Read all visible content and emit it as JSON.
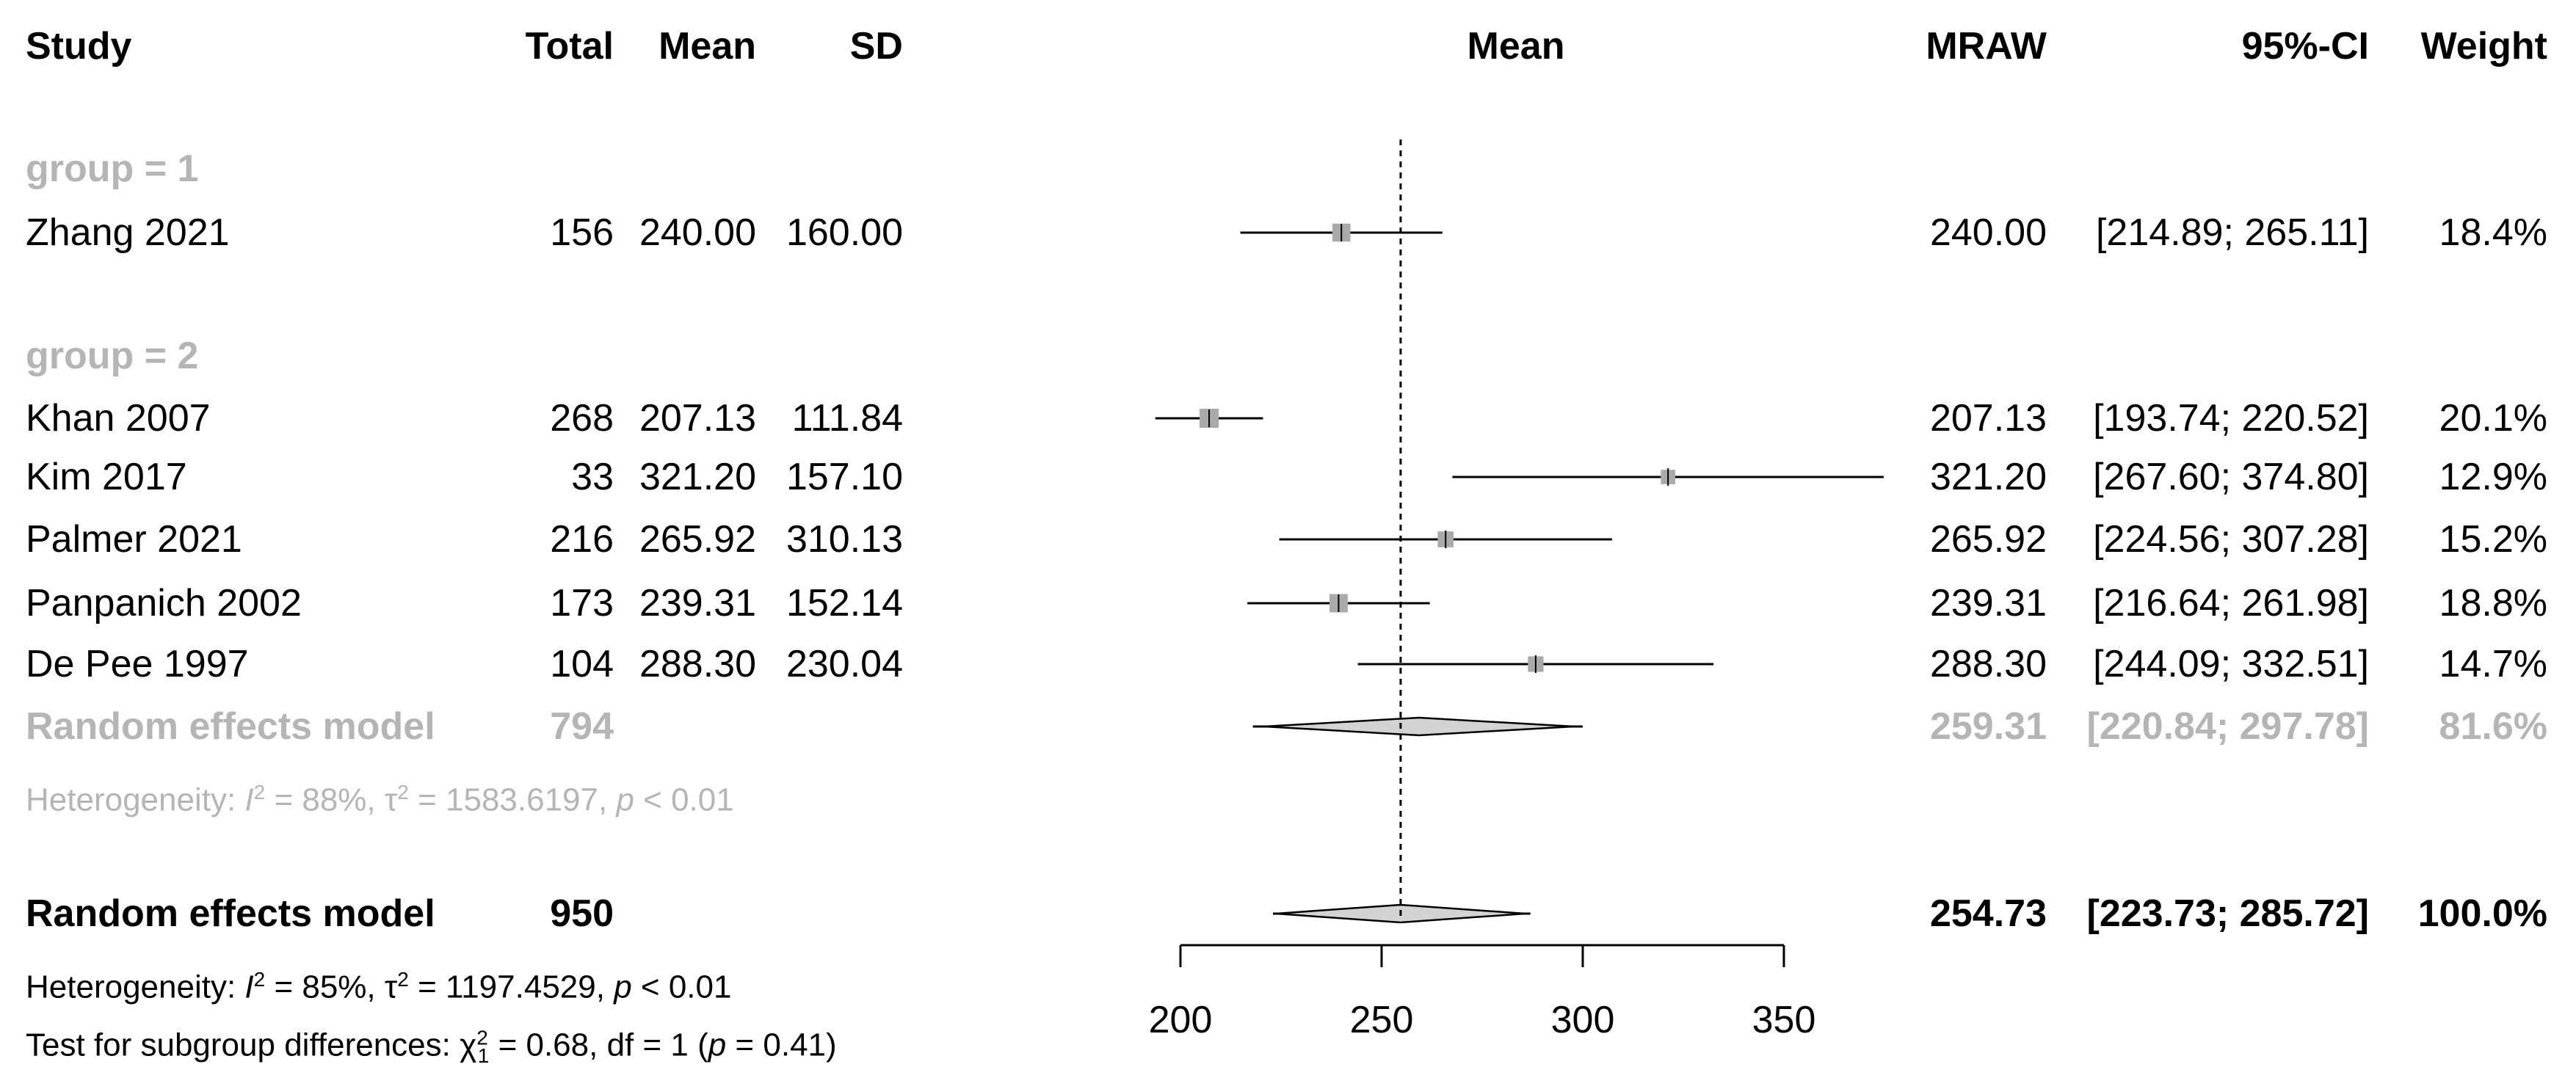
{
  "chart_data": {
    "type": "forest",
    "columns": {
      "study": "Study",
      "total": "Total",
      "mean": "Mean",
      "sd": "SD",
      "plot": "Mean",
      "effect": "MRAW",
      "ci": "95%-CI",
      "weight": "Weight"
    },
    "subgroups": [
      {
        "label": "group = 1",
        "studies": [
          {
            "study": "Zhang 2021",
            "total": "156",
            "mean": "240.00",
            "sd": "160.00",
            "est": 240.0,
            "lo": 214.89,
            "hi": 265.11,
            "effect": "240.00",
            "ci": "[214.89; 265.11]",
            "weight": "18.4%",
            "w": 18.4
          }
        ]
      },
      {
        "label": "group = 2",
        "studies": [
          {
            "study": "Khan 2007",
            "total": "268",
            "mean": "207.13",
            "sd": "111.84",
            "est": 207.13,
            "lo": 193.74,
            "hi": 220.52,
            "effect": "207.13",
            "ci": "[193.74; 220.52]",
            "weight": "20.1%",
            "w": 20.1
          },
          {
            "study": "Kim 2017",
            "total": "33",
            "mean": "321.20",
            "sd": "157.10",
            "est": 321.2,
            "lo": 267.6,
            "hi": 374.8,
            "effect": "321.20",
            "ci": "[267.60; 374.80]",
            "weight": "12.9%",
            "w": 12.9
          },
          {
            "study": "Palmer 2021",
            "total": "216",
            "mean": "265.92",
            "sd": "310.13",
            "est": 265.92,
            "lo": 224.56,
            "hi": 307.28,
            "effect": "265.92",
            "ci": "[224.56; 307.28]",
            "weight": "15.2%",
            "w": 15.2
          },
          {
            "study": "Panpanich 2002",
            "total": "173",
            "mean": "239.31",
            "sd": "152.14",
            "est": 239.31,
            "lo": 216.64,
            "hi": 261.98,
            "effect": "239.31",
            "ci": "[216.64; 261.98]",
            "weight": "18.8%",
            "w": 18.8
          },
          {
            "study": "De Pee 1997",
            "total": "104",
            "mean": "288.30",
            "sd": "230.04",
            "est": 288.3,
            "lo": 244.09,
            "hi": 332.51,
            "effect": "288.30",
            "ci": "[244.09; 332.51]",
            "weight": "14.7%",
            "w": 14.7
          }
        ],
        "pooled": {
          "label": "Random effects model",
          "total": "794",
          "est": 259.31,
          "lo": 220.84,
          "hi": 297.78,
          "pi_lo": 218.0,
          "pi_hi": 300.0,
          "effect": "259.31",
          "ci": "[220.84; 297.78]",
          "weight": "81.6%"
        },
        "heterogeneity": {
          "prefix": "Heterogeneity: ",
          "i2_sym": "I",
          "i2_val": " = 88%, ",
          "tau_sym": "τ",
          "tau_val": " = 1583.6197, ",
          "p_sym": "p",
          "p_val": " < 0.01"
        }
      }
    ],
    "overall": {
      "label": "Random effects model",
      "total": "950",
      "est": 254.73,
      "lo": 223.73,
      "hi": 285.72,
      "pi_lo": 223.0,
      "pi_hi": 287.0,
      "effect": "254.73",
      "ci": "[223.73; 285.72]",
      "weight": "100.0%"
    },
    "overall_heterogeneity": {
      "prefix": "Heterogeneity: ",
      "i2_sym": "I",
      "i2_val": " = 85%, ",
      "tau_sym": "τ",
      "tau_val": " = 1197.4529, ",
      "p_sym": "p",
      "p_val": " < 0.01"
    },
    "subgroup_test": {
      "prefix": "Test for subgroup differences: ",
      "chi_sym": "χ",
      "chi_sub": "1",
      "chi_val": " = 0.68, df = 1 (",
      "p_sym": "p",
      "p_val": " = 0.41)"
    },
    "reference_line": 254.73,
    "x_axis": {
      "range": [
        200,
        350
      ],
      "ticks": [
        200,
        250,
        300,
        350
      ],
      "tick_labels": [
        "200",
        "250",
        "300",
        "350"
      ]
    }
  }
}
